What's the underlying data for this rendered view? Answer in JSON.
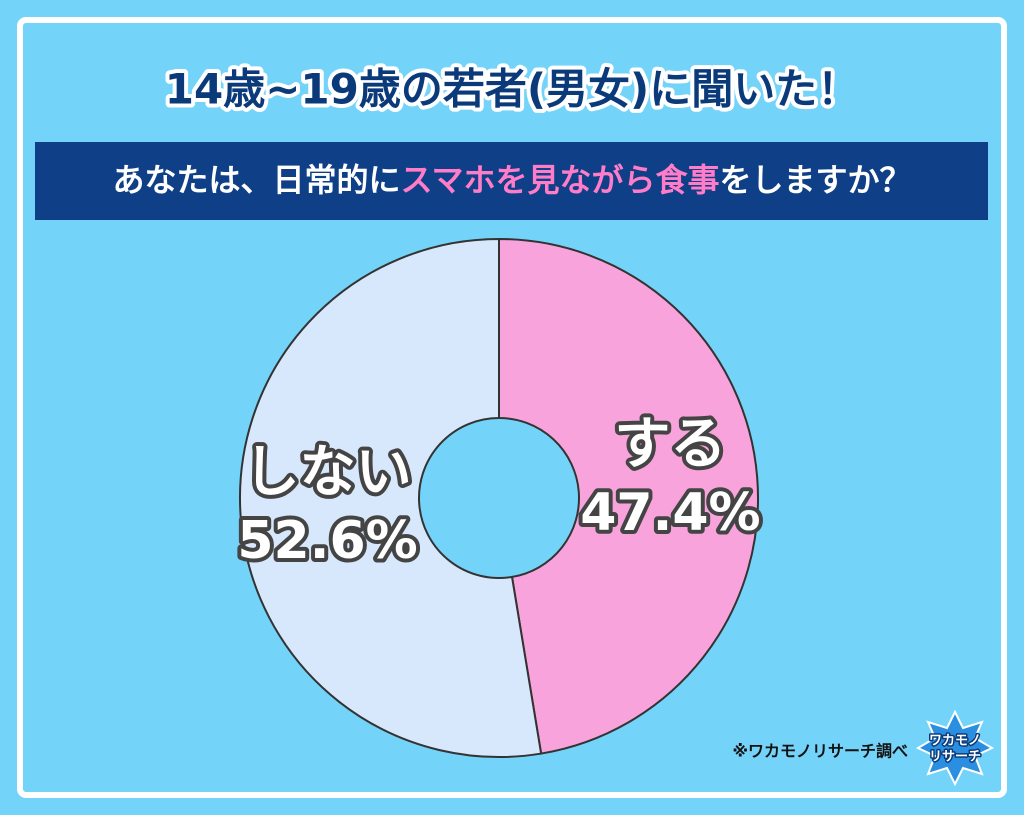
{
  "chart_data": {
    "type": "pie",
    "donut": true,
    "title": "14歳~19歳の若者(男女)に聞いた！",
    "subtitle": [
      "あなたは、日常的に",
      "スマホを見ながら食事",
      "をしますか？"
    ],
    "categories": [
      "する",
      "しない"
    ],
    "values": [
      47.4,
      52.6
    ],
    "value_labels": [
      "47.4%",
      "52.6%"
    ],
    "colors": [
      "#f9a3dc",
      "#d8e8fc"
    ],
    "source": "※ワカモノリサーチ調べ",
    "logo": [
      "ワカモノ",
      "リサーチ"
    ]
  }
}
